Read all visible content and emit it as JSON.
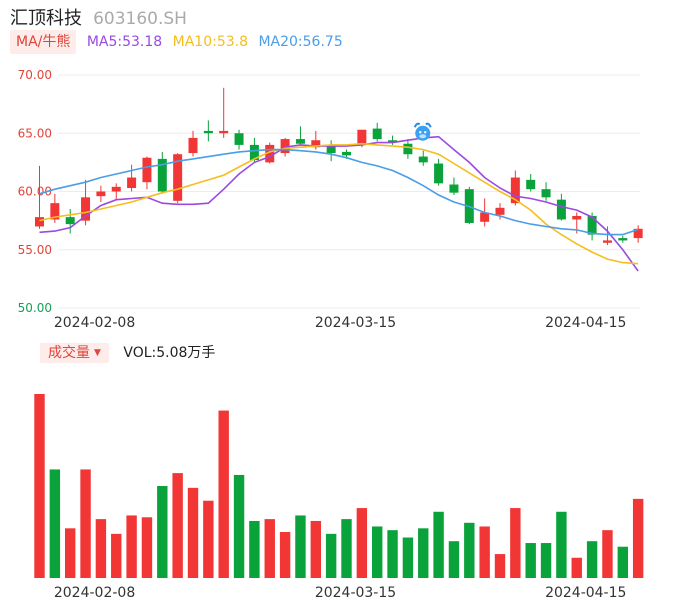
{
  "header": {
    "name": "汇顶科技",
    "code": "603160.SH"
  },
  "ma_legend": {
    "tag": "MA/牛熊",
    "items": [
      {
        "label": "MA5:53.18",
        "color": "#9b4ae0"
      },
      {
        "label": "MA10:53.8",
        "color": "#f5be1e"
      },
      {
        "label": "MA20:56.75",
        "color": "#4a9de8"
      }
    ]
  },
  "volume_legend": {
    "tag": "成交量",
    "value": "VOL:5.08万手"
  },
  "colors": {
    "up": "#f23535",
    "down": "#0aa23a"
  },
  "chart_data": [
    {
      "type": "candlestick",
      "title": "",
      "xlabel": "",
      "ylabel": "",
      "ylim": [
        50,
        70
      ],
      "y_ticks": [
        "70.00",
        "65.00",
        "60.00",
        "55.00",
        "50.00"
      ],
      "y_tick_values": [
        70,
        65,
        60,
        55,
        50
      ],
      "x_ticks": [
        {
          "index": 3,
          "label": "2024-02-08"
        },
        {
          "index": 20,
          "label": "2024-03-15"
        },
        {
          "index": 35,
          "label": "2024-04-15"
        }
      ],
      "grid": true,
      "candles": [
        {
          "o": 57.0,
          "h": 62.2,
          "l": 56.8,
          "c": 57.8
        },
        {
          "o": 57.6,
          "h": 59.8,
          "l": 57.3,
          "c": 59.0
        },
        {
          "o": 57.8,
          "h": 58.5,
          "l": 56.4,
          "c": 57.2
        },
        {
          "o": 57.5,
          "h": 61.0,
          "l": 57.1,
          "c": 59.5
        },
        {
          "o": 59.6,
          "h": 60.5,
          "l": 59.1,
          "c": 60.0
        },
        {
          "o": 60.0,
          "h": 60.7,
          "l": 59.3,
          "c": 60.4
        },
        {
          "o": 60.3,
          "h": 62.3,
          "l": 60.0,
          "c": 61.2
        },
        {
          "o": 60.8,
          "h": 63.0,
          "l": 60.2,
          "c": 62.9
        },
        {
          "o": 62.8,
          "h": 63.4,
          "l": 59.8,
          "c": 60.0
        },
        {
          "o": 59.2,
          "h": 63.3,
          "l": 59.0,
          "c": 63.2
        },
        {
          "o": 63.3,
          "h": 65.2,
          "l": 63.0,
          "c": 64.6
        },
        {
          "o": 65.2,
          "h": 66.1,
          "l": 64.3,
          "c": 65.0
        },
        {
          "o": 65.0,
          "h": 68.9,
          "l": 64.6,
          "c": 65.2
        },
        {
          "o": 65.0,
          "h": 65.3,
          "l": 63.6,
          "c": 64.0
        },
        {
          "o": 64.0,
          "h": 64.6,
          "l": 62.5,
          "c": 62.7
        },
        {
          "o": 62.5,
          "h": 64.2,
          "l": 62.4,
          "c": 64.0
        },
        {
          "o": 63.3,
          "h": 64.6,
          "l": 63.0,
          "c": 64.5
        },
        {
          "o": 64.5,
          "h": 65.6,
          "l": 64.0,
          "c": 64.1
        },
        {
          "o": 63.8,
          "h": 65.2,
          "l": 63.6,
          "c": 64.4
        },
        {
          "o": 64.0,
          "h": 64.4,
          "l": 62.6,
          "c": 63.3
        },
        {
          "o": 63.4,
          "h": 63.6,
          "l": 62.8,
          "c": 63.1
        },
        {
          "o": 64.0,
          "h": 65.3,
          "l": 63.8,
          "c": 65.3
        },
        {
          "o": 65.4,
          "h": 65.9,
          "l": 64.3,
          "c": 64.5
        },
        {
          "o": 64.4,
          "h": 64.8,
          "l": 64.0,
          "c": 64.2
        },
        {
          "o": 64.1,
          "h": 64.5,
          "l": 62.8,
          "c": 63.2
        },
        {
          "o": 63.0,
          "h": 63.5,
          "l": 62.2,
          "c": 62.5
        },
        {
          "o": 62.4,
          "h": 62.8,
          "l": 60.5,
          "c": 60.7
        },
        {
          "o": 60.6,
          "h": 61.2,
          "l": 59.7,
          "c": 59.9
        },
        {
          "o": 60.2,
          "h": 60.4,
          "l": 57.2,
          "c": 57.3
        },
        {
          "o": 57.4,
          "h": 59.4,
          "l": 57.0,
          "c": 58.2
        },
        {
          "o": 58.0,
          "h": 59.0,
          "l": 57.6,
          "c": 58.6
        },
        {
          "o": 59.0,
          "h": 61.8,
          "l": 58.8,
          "c": 61.2
        },
        {
          "o": 61.0,
          "h": 61.5,
          "l": 60.0,
          "c": 60.2
        },
        {
          "o": 60.2,
          "h": 60.8,
          "l": 59.2,
          "c": 59.5
        },
        {
          "o": 59.3,
          "h": 59.8,
          "l": 57.5,
          "c": 57.6
        },
        {
          "o": 57.6,
          "h": 58.2,
          "l": 56.4,
          "c": 57.9
        },
        {
          "o": 57.9,
          "h": 58.2,
          "l": 55.8,
          "c": 56.3
        },
        {
          "o": 55.6,
          "h": 57.0,
          "l": 55.4,
          "c": 55.8
        },
        {
          "o": 56.0,
          "h": 56.2,
          "l": 55.6,
          "c": 55.8
        },
        {
          "o": 56.0,
          "h": 57.1,
          "l": 55.6,
          "c": 56.8
        }
      ],
      "series": [
        {
          "name": "MA5",
          "color": "#9b4ae0",
          "values": [
            56.5,
            56.6,
            56.9,
            57.9,
            58.8,
            59.3,
            59.4,
            59.5,
            59.0,
            58.9,
            58.9,
            59.0,
            60.2,
            61.5,
            62.5,
            63.0,
            63.8,
            64.0,
            63.9,
            63.9,
            63.9,
            64.0,
            64.2,
            64.2,
            64.4,
            64.6,
            64.7,
            63.6,
            62.5,
            61.2,
            60.3,
            59.6,
            59.4,
            59.1,
            58.7,
            58.4,
            57.8,
            56.6,
            55.0,
            53.18
          ]
        },
        {
          "name": "MA10",
          "color": "#f5be1e",
          "values": [
            57.5,
            57.8,
            58.0,
            58.2,
            58.5,
            58.8,
            59.1,
            59.5,
            59.9,
            60.2,
            60.6,
            61.0,
            61.4,
            62.1,
            62.8,
            63.4,
            63.7,
            63.8,
            63.9,
            64.0,
            64.0,
            64.1,
            64.0,
            63.9,
            63.8,
            63.6,
            63.2,
            62.4,
            61.6,
            60.8,
            60.0,
            59.3,
            58.4,
            57.2,
            56.3,
            55.5,
            54.8,
            54.2,
            53.9,
            53.8
          ]
        },
        {
          "name": "MA20",
          "color": "#4a9de8",
          "values": [
            59.8,
            60.2,
            60.5,
            60.8,
            61.2,
            61.5,
            61.8,
            62.1,
            62.3,
            62.6,
            62.8,
            63.0,
            63.2,
            63.4,
            63.5,
            63.6,
            63.6,
            63.5,
            63.4,
            63.2,
            62.9,
            62.5,
            62.2,
            61.8,
            61.2,
            60.5,
            59.7,
            59.1,
            58.7,
            58.2,
            57.9,
            57.5,
            57.2,
            57.0,
            56.8,
            56.7,
            56.4,
            56.3,
            56.3,
            56.75
          ]
        }
      ],
      "annotation": "bull-face-icon"
    },
    {
      "type": "bar",
      "title": "",
      "xlabel": "",
      "ylabel": "",
      "x_ticks": [
        {
          "index": 3,
          "label": "2024-02-08"
        },
        {
          "index": 20,
          "label": "2024-03-15"
        },
        {
          "index": 35,
          "label": "2024-04-15"
        }
      ],
      "ylim": [
        0,
        1
      ],
      "values": [
        1.0,
        0.59,
        0.27,
        0.59,
        0.32,
        0.24,
        0.34,
        0.33,
        0.5,
        0.57,
        0.49,
        0.42,
        0.91,
        0.56,
        0.31,
        0.32,
        0.25,
        0.34,
        0.31,
        0.24,
        0.32,
        0.38,
        0.28,
        0.26,
        0.22,
        0.27,
        0.36,
        0.2,
        0.3,
        0.28,
        0.13,
        0.38,
        0.19,
        0.19,
        0.36,
        0.11,
        0.2,
        0.26,
        0.17,
        0.43
      ],
      "directions": [
        "up",
        "down",
        "up",
        "up",
        "up",
        "up",
        "up",
        "up",
        "down",
        "up",
        "up",
        "up",
        "up",
        "down",
        "down",
        "up",
        "up",
        "down",
        "up",
        "down",
        "down",
        "up",
        "down",
        "down",
        "down",
        "down",
        "down",
        "down",
        "down",
        "up",
        "up",
        "up",
        "down",
        "down",
        "down",
        "up",
        "down",
        "up",
        "down",
        "up"
      ]
    }
  ]
}
